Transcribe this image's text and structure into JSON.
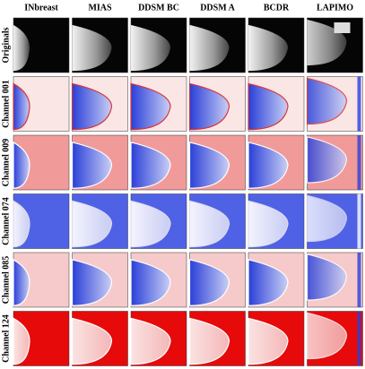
{
  "columns": [
    "INbreast",
    "MIAS",
    "DDSM BC",
    "DDSM A",
    "BCDR",
    "LAPIMO"
  ],
  "rows": [
    "Originals",
    "Channel 001",
    "Channel 009",
    "Channel 074",
    "Channel 085",
    "Channel 124"
  ]
}
